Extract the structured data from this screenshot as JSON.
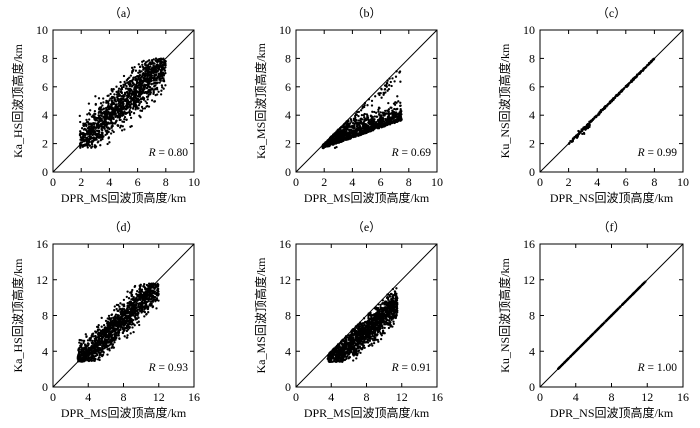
{
  "chart_data": [
    {
      "type": "scatter",
      "panel_label": "（a）",
      "xlabel": "DPR_MS回波顶高度/km",
      "ylabel": "Ka_HS回波顶高度/km",
      "xlim": [
        0,
        10
      ],
      "ylim": [
        0,
        10
      ],
      "xticks": [
        0,
        2,
        4,
        6,
        8,
        10
      ],
      "yticks": [
        2,
        4,
        6,
        8,
        10
      ],
      "diagonal": true,
      "annotation": "R = 0.80",
      "stat_name": "R",
      "stat_value": "0.80",
      "cloud": {
        "x_range": [
          1.8,
          8.0
        ],
        "center": [
          4.8,
          4.5
        ],
        "note": "dense cloud roughly along diagonal, y from ~1.7 to ~8"
      }
    },
    {
      "type": "scatter",
      "panel_label": "（b）",
      "xlabel": "DPR_MS回波顶高度/km",
      "ylabel": "Ka_MS回波顶高度/km",
      "xlim": [
        0,
        10
      ],
      "ylim": [
        0,
        10
      ],
      "xticks": [
        0,
        2,
        4,
        6,
        8,
        10
      ],
      "yticks": [
        2,
        4,
        6,
        8,
        10
      ],
      "diagonal": true,
      "annotation": "R = 0.69",
      "stat_name": "R",
      "stat_value": "0.69",
      "cloud": {
        "x_range": [
          1.8,
          7.5
        ],
        "center": [
          4.5,
          3.0
        ],
        "note": "points mostly below diagonal, y from ~1.6 to ~7"
      }
    },
    {
      "type": "scatter",
      "panel_label": "（c）",
      "xlabel": "DPR_NS回波顶高度/km",
      "ylabel": "Ku_NS回波顶高度/km",
      "xlim": [
        0,
        10
      ],
      "ylim": [
        0,
        10
      ],
      "xticks": [
        0,
        2,
        4,
        6,
        8,
        10
      ],
      "yticks": [
        2,
        4,
        6,
        8,
        10
      ],
      "diagonal": true,
      "annotation": "R = 0.99",
      "stat_name": "R",
      "stat_value": "0.99",
      "cloud": {
        "x_range": [
          1.8,
          8.0
        ],
        "note": "points on the 1:1 line, small spread near x 2-3.5"
      }
    },
    {
      "type": "scatter",
      "panel_label": "（d）",
      "xlabel": "DPR_MS回波顶高度/km",
      "ylabel": "Ka_HS回波顶高度/km",
      "xlim": [
        0,
        16
      ],
      "ylim": [
        0,
        16
      ],
      "xticks": [
        0,
        4,
        8,
        12,
        16
      ],
      "yticks": [
        4,
        8,
        12,
        16
      ],
      "diagonal": true,
      "annotation": "R = 0.93",
      "stat_name": "R",
      "stat_value": "0.93",
      "cloud": {
        "x_range": [
          2.5,
          12.0
        ],
        "center": [
          7.0,
          6.8
        ],
        "note": "elongated cloud along diagonal, y from ~3 to ~11.5"
      }
    },
    {
      "type": "scatter",
      "panel_label": "（e）",
      "xlabel": "DPR_MS回波顶高度/km",
      "ylabel": "Ka_MS回波顶高度/km",
      "xlim": [
        0,
        16
      ],
      "ylim": [
        0,
        16
      ],
      "xticks": [
        0,
        4,
        8,
        12,
        16
      ],
      "yticks": [
        4,
        8,
        12,
        16
      ],
      "diagonal": true,
      "annotation": "R = 0.91",
      "stat_name": "R",
      "stat_value": "0.91",
      "cloud": {
        "x_range": [
          3.5,
          11.5
        ],
        "center": [
          7.5,
          6.0
        ],
        "note": "cloud below diagonal, y from ~3 to ~11"
      }
    },
    {
      "type": "scatter",
      "panel_label": "（f）",
      "xlabel": "DPR_NS回波顶高度/km",
      "ylabel": "Ku_NS回波顶高度/km",
      "xlim": [
        0,
        16
      ],
      "ylim": [
        0,
        16
      ],
      "xticks": [
        0,
        4,
        8,
        12,
        16
      ],
      "yticks": [
        4,
        8,
        12,
        16
      ],
      "diagonal": true,
      "annotation": "R = 1.00",
      "stat_name": "R",
      "stat_value": "1.00",
      "cloud": {
        "x_range": [
          2.0,
          11.8
        ],
        "note": "points exactly on the 1:1 line"
      }
    }
  ],
  "colors": {
    "points": "#000000",
    "axes": "#000000",
    "background": "#ffffff"
  }
}
